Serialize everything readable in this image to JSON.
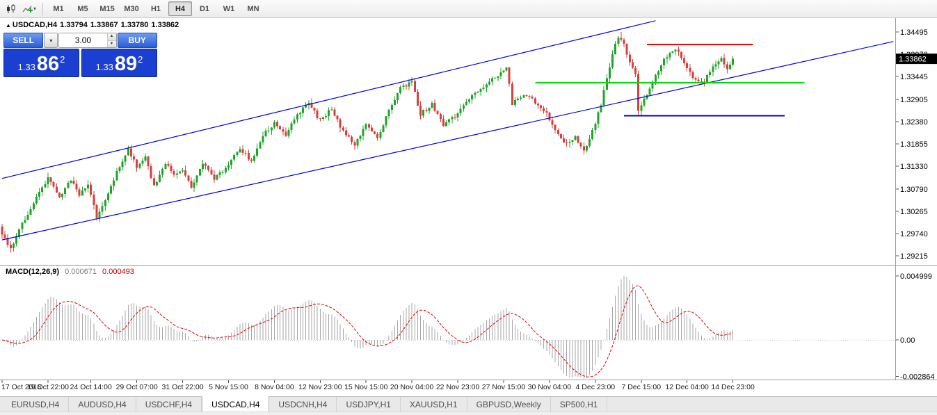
{
  "toolbar": {
    "timeframes": [
      "M1",
      "M5",
      "M15",
      "M30",
      "H1",
      "H4",
      "D1",
      "W1",
      "MN"
    ],
    "active_timeframe": "H4"
  },
  "chart_header": {
    "marker": "▲",
    "symbol": "USDCAD,H4"
  },
  "trade_widget": {
    "sell_label": "SELL",
    "buy_label": "BUY",
    "volume": "3.00",
    "sell_quote": {
      "small": "1.33",
      "big": "86",
      "sup": "2"
    },
    "buy_quote": {
      "small": "1.33",
      "big": "89",
      "sup": "2"
    }
  },
  "chart_data": {
    "type": "candlestick",
    "symbol": "USDCAD",
    "timeframe": "H4",
    "ohlc_header": {
      "open": "1.33794",
      "high": "1.33867",
      "low": "1.33780",
      "close": "1.33862"
    },
    "current_price": 1.33862,
    "current_price_label": "1.33862",
    "ylim": [
      1.29035,
      1.34757
    ],
    "price_ticks": [
      "1.34495",
      "1.33970",
      "1.33445",
      "1.32905",
      "1.32380",
      "1.31855",
      "1.31330",
      "1.30790",
      "1.30265",
      "1.29740",
      "1.29215"
    ],
    "n_candles": 256,
    "first_open": 1.299,
    "last_close": 1.33862,
    "noise": 0.0009,
    "wick": 0.0011,
    "close_path": [
      [
        0,
        1.2975
      ],
      [
        3,
        1.2935
      ],
      [
        6,
        1.2985
      ],
      [
        10,
        1.303
      ],
      [
        13,
        1.307
      ],
      [
        16,
        1.3105
      ],
      [
        20,
        1.306
      ],
      [
        24,
        1.31
      ],
      [
        27,
        1.3065
      ],
      [
        30,
        1.309
      ],
      [
        33,
        1.301
      ],
      [
        36,
        1.305
      ],
      [
        40,
        1.312
      ],
      [
        44,
        1.3175
      ],
      [
        47,
        1.313
      ],
      [
        50,
        1.3155
      ],
      [
        53,
        1.3085
      ],
      [
        57,
        1.314
      ],
      [
        60,
        1.311
      ],
      [
        63,
        1.3125
      ],
      [
        66,
        1.308
      ],
      [
        70,
        1.314
      ],
      [
        74,
        1.3105
      ],
      [
        79,
        1.3135
      ],
      [
        83,
        1.3175
      ],
      [
        87,
        1.3145
      ],
      [
        91,
        1.3205
      ],
      [
        95,
        1.3235
      ],
      [
        99,
        1.3205
      ],
      [
        103,
        1.3255
      ],
      [
        107,
        1.328
      ],
      [
        111,
        1.324
      ],
      [
        115,
        1.327
      ],
      [
        119,
        1.3215
      ],
      [
        123,
        1.3185
      ],
      [
        127,
        1.323
      ],
      [
        131,
        1.32
      ],
      [
        135,
        1.3265
      ],
      [
        139,
        1.332
      ],
      [
        143,
        1.333
      ],
      [
        146,
        1.3255
      ],
      [
        150,
        1.328
      ],
      [
        154,
        1.323
      ],
      [
        158,
        1.325
      ],
      [
        162,
        1.3285
      ],
      [
        166,
        1.331
      ],
      [
        170,
        1.333
      ],
      [
        174,
        1.3355
      ],
      [
        176,
        1.3368
      ],
      [
        178,
        1.3278
      ],
      [
        182,
        1.3305
      ],
      [
        186,
        1.3285
      ],
      [
        190,
        1.3255
      ],
      [
        193,
        1.3215
      ],
      [
        196,
        1.3185
      ],
      [
        200,
        1.32
      ],
      [
        203,
        1.317
      ],
      [
        206,
        1.3215
      ],
      [
        209,
        1.328
      ],
      [
        211,
        1.334
      ],
      [
        213,
        1.34
      ],
      [
        215,
        1.3435
      ],
      [
        217,
        1.342
      ],
      [
        219,
        1.338
      ],
      [
        221,
        1.3355
      ],
      [
        222,
        1.3268
      ],
      [
        224,
        1.329
      ],
      [
        227,
        1.333
      ],
      [
        230,
        1.3375
      ],
      [
        233,
        1.34
      ],
      [
        236,
        1.3405
      ],
      [
        239,
        1.336
      ],
      [
        242,
        1.3338
      ],
      [
        245,
        1.333
      ],
      [
        248,
        1.3372
      ],
      [
        251,
        1.3388
      ],
      [
        253,
        1.3365
      ],
      [
        255,
        1.33862
      ]
    ],
    "spikes": [
      {
        "i": 216,
        "type": "high",
        "price": 1.34495
      },
      {
        "i": 222,
        "type": "low",
        "price": 1.3252
      },
      {
        "i": 203,
        "type": "low",
        "price": 1.316
      },
      {
        "i": 3,
        "type": "low",
        "price": 1.294
      }
    ],
    "colors": {
      "up": "#1fa428",
      "down": "#dd3c3c"
    },
    "overlays": {
      "trendlines": [
        {
          "name": "channel-lower-trendline",
          "i1": 0,
          "p1": 1.2959,
          "i2": 311,
          "p2": 1.3427,
          "color": "#0000dd"
        },
        {
          "name": "channel-upper-trendline",
          "i1": 0,
          "p1": 1.3104,
          "i2": 228,
          "p2": 1.3476,
          "color": "#0000dd"
        }
      ],
      "hlines": [
        {
          "name": "resistance-line-red",
          "price": 1.342,
          "i1": 225,
          "i2": 262,
          "color": "#ff0000",
          "width": 2
        },
        {
          "name": "support-line-green",
          "price": 1.333,
          "i1": 186,
          "i2": 280,
          "color": "#00dd00",
          "width": 2
        },
        {
          "name": "support-line-blue",
          "price": 1.3252,
          "i1": 217,
          "i2": 273,
          "color": "#0000cc",
          "width": 2
        }
      ]
    },
    "time_ticks": [
      {
        "i": 0,
        "label": "17 Oct 2018"
      },
      {
        "i": 16,
        "label": "19 Oct 22:00"
      },
      {
        "i": 31,
        "label": "24 Oct 14:00"
      },
      {
        "i": 47,
        "label": "29 Oct 07:00"
      },
      {
        "i": 63,
        "label": "31 Oct 22:00"
      },
      {
        "i": 79,
        "label": "5 Nov 15:00"
      },
      {
        "i": 95,
        "label": "8 Nov 04:00"
      },
      {
        "i": 111,
        "label": "12 Nov 23:00"
      },
      {
        "i": 127,
        "label": "15 Nov 15:00"
      },
      {
        "i": 143,
        "label": "20 Nov 04:00"
      },
      {
        "i": 159,
        "label": "22 Nov 23:00"
      },
      {
        "i": 175,
        "label": "27 Nov 15:00"
      },
      {
        "i": 191,
        "label": "30 Nov 04:00"
      },
      {
        "i": 207,
        "label": "4 Dec 23:00"
      },
      {
        "i": 223,
        "label": "7 Dec 15:00"
      },
      {
        "i": 239,
        "label": "12 Dec 04:00"
      },
      {
        "i": 255,
        "label": "14 Dec 23:00"
      }
    ],
    "macd": {
      "label": "MACD(12,26,9)",
      "value_main": "0.000671",
      "value_signal": "0.000493",
      "params": [
        12,
        26,
        9
      ],
      "axis": [
        {
          "v": 0.004999,
          "label": "0.004999"
        },
        {
          "v": 0,
          "label": "0.00"
        },
        {
          "v": -0.002864,
          "label": "-0.002864"
        }
      ],
      "colors": {
        "hist": "#a6a6a6",
        "signal": "#e00000"
      }
    }
  },
  "tabs": {
    "items": [
      "EURUSD,H4",
      "AUDUSD,H4",
      "USDCHF,H4",
      "USDCAD,H4",
      "USDCNH,H4",
      "USDJPY,H1",
      "XAUUSD,H1",
      "GBPUSD,Weekly",
      "SP500,H1"
    ],
    "active": "USDCAD,H4"
  }
}
